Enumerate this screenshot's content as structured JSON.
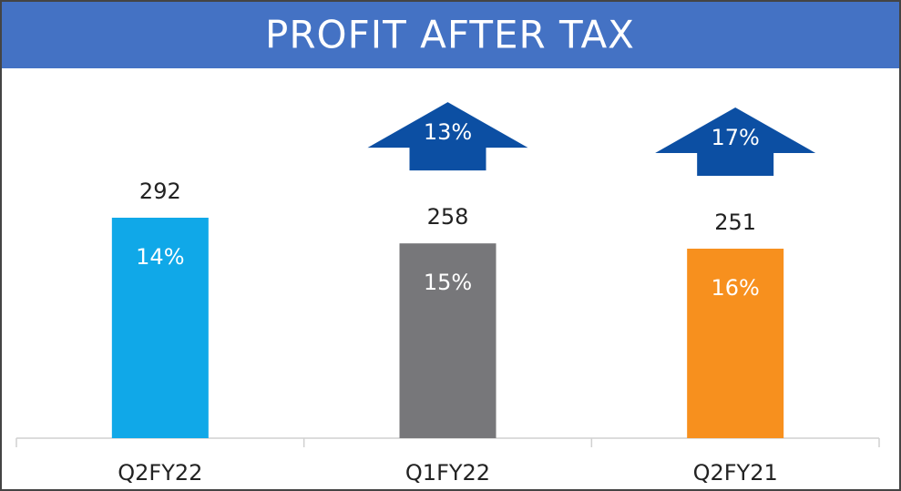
{
  "chart_data": {
    "type": "bar",
    "title": "PROFIT AFTER TAX",
    "categories": [
      "Q2FY22",
      "Q1FY22",
      "Q2FY21"
    ],
    "values": [
      292,
      258,
      251
    ],
    "colors": [
      "#10a8e8",
      "#77777a",
      "#f7901e"
    ],
    "margin_values": [
      14,
      15,
      16
    ],
    "margin_labels": [
      "14%",
      "15%",
      "16%"
    ],
    "growth": [
      null,
      13,
      17
    ],
    "growth_labels": [
      null,
      "13%",
      "17%"
    ],
    "growth_color": "#0c4fa3",
    "header_color": "#4472c4"
  }
}
